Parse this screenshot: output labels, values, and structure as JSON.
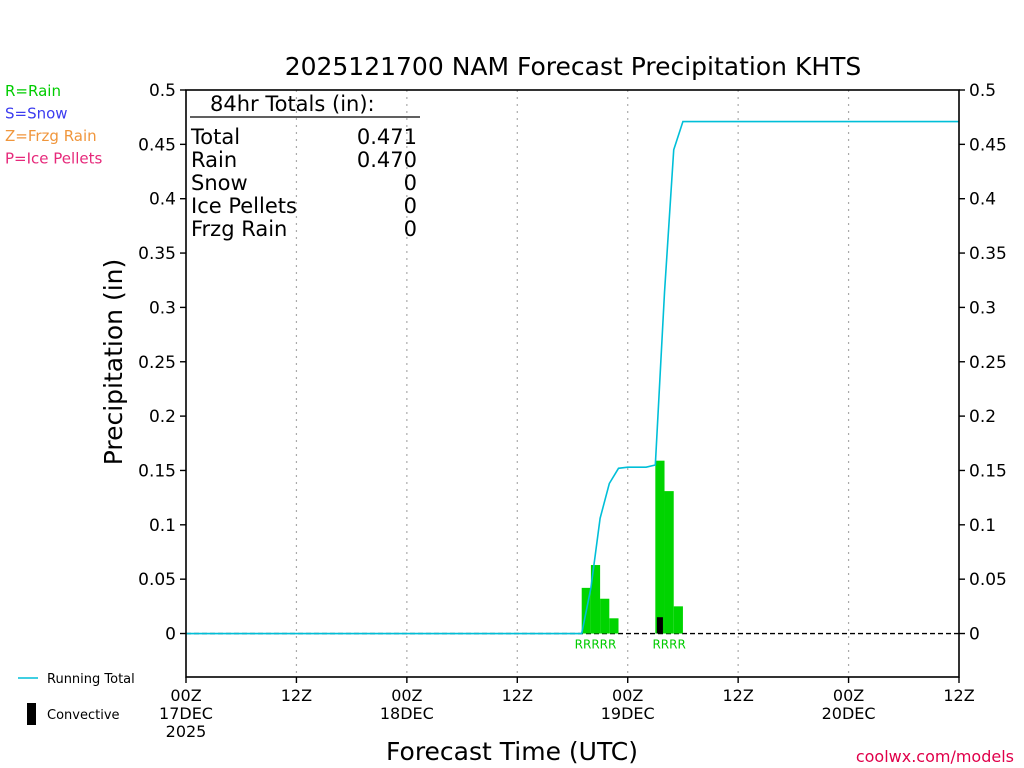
{
  "chart_data": {
    "type": "bar",
    "title": "2025121700 NAM Forecast Precipitation KHTS",
    "xlabel": "Forecast Time (UTC)",
    "ylabel": "Precipitation (in)",
    "ylim": [
      -0.04,
      0.5
    ],
    "xlim_hours": [
      0,
      84
    ],
    "y_ticks": [
      0,
      0.05,
      0.1,
      0.15,
      0.2,
      0.25,
      0.3,
      0.35,
      0.4,
      0.45,
      0.5
    ],
    "y_tick_labels": [
      "0",
      "0.05",
      "0.1",
      "0.15",
      "0.2",
      "0.25",
      "0.3",
      "0.35",
      "0.4",
      "0.45",
      "0.5"
    ],
    "x_ticks": [
      {
        "hour": 0,
        "lines": [
          "00Z",
          "17DEC",
          "2025"
        ]
      },
      {
        "hour": 12,
        "lines": [
          "12Z"
        ]
      },
      {
        "hour": 24,
        "lines": [
          "00Z",
          "18DEC"
        ]
      },
      {
        "hour": 36,
        "lines": [
          "12Z"
        ]
      },
      {
        "hour": 48,
        "lines": [
          "00Z",
          "19DEC"
        ]
      },
      {
        "hour": 60,
        "lines": [
          "12Z"
        ]
      },
      {
        "hour": 72,
        "lines": [
          "00Z",
          "20DEC"
        ]
      },
      {
        "hour": 84,
        "lines": [
          "12Z"
        ]
      }
    ],
    "grid": true,
    "legend_position": "left",
    "type_legend": [
      {
        "label": "R=Rain",
        "color": "#00cc00"
      },
      {
        "label": "S=Snow",
        "color": "#3c3cf0"
      },
      {
        "label": "Z=Frzg Rain",
        "color": "#f0963c"
      },
      {
        "label": "P=Ice Pellets",
        "color": "#e6287a"
      }
    ],
    "series_legend": [
      {
        "label": "Running Total",
        "color": "#00bfd8",
        "style": "line"
      },
      {
        "label": "Convective",
        "color": "#000000",
        "style": "bar"
      }
    ],
    "rain_bars": [
      {
        "hour": 44,
        "value": 0.042
      },
      {
        "hour": 45,
        "value": 0.063
      },
      {
        "hour": 46,
        "value": 0.032
      },
      {
        "hour": 47,
        "value": 0.014
      },
      {
        "hour": 52,
        "value": 0.159
      },
      {
        "hour": 53,
        "value": 0.131
      },
      {
        "hour": 54,
        "value": 0.025
      }
    ],
    "convective_bars": [
      {
        "hour": 52,
        "value": 0.015
      }
    ],
    "running_total": {
      "x": [
        0,
        43,
        44,
        45,
        46,
        47,
        48,
        50,
        51,
        52,
        53,
        54,
        84
      ],
      "y": [
        0,
        0,
        0.042,
        0.106,
        0.138,
        0.152,
        0.153,
        0.153,
        0.155,
        0.314,
        0.445,
        0.471,
        0.471
      ]
    },
    "ptype_labels": [
      {
        "hour": 45.5,
        "text": "RRRRR",
        "color": "#00cc00"
      },
      {
        "hour": 53.5,
        "text": "RRRR",
        "color": "#00cc00"
      }
    ],
    "totals": {
      "heading": "84hr Totals (in):",
      "rows": [
        {
          "label": "Total",
          "value": "0.471"
        },
        {
          "label": "Rain",
          "value": "0.470"
        },
        {
          "label": "Snow",
          "value": "0"
        },
        {
          "label": "Ice Pellets",
          "value": "0"
        },
        {
          "label": "Frzg Rain",
          "value": "0"
        }
      ]
    },
    "credit": "coolwx.com/models",
    "colors": {
      "rain": "#00d400",
      "running_total": "#00bfd8",
      "convective": "#000000",
      "credit": "#e0004a"
    }
  }
}
